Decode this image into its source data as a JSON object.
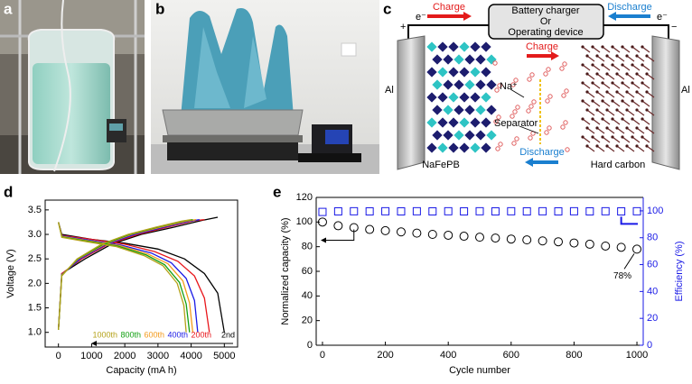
{
  "panel_labels": [
    "a",
    "b",
    "c",
    "d",
    "e"
  ],
  "diagram": {
    "charger": [
      "Battery charger",
      "Or",
      "Operating device"
    ],
    "charge_top": "Charge",
    "discharge_top": "Discharge",
    "electron_left": "e⁻",
    "electron_right": "e⁻",
    "plus": "+",
    "minus": "−",
    "al_left": "Al",
    "al_right": "Al",
    "ion": "Na⁺",
    "charge_mid": "Charge",
    "separator": "Separator",
    "discharge_mid": "Discharge",
    "cathode": "NaFePB",
    "anode": "Hard carbon"
  },
  "chart_data": [
    {
      "type": "line",
      "x_label": "Capacity (mA h)",
      "y_label": "Voltage (V)",
      "xlim": [
        -400,
        5400
      ],
      "xticks": [
        0,
        1000,
        2000,
        3000,
        4000,
        5000
      ],
      "ylim": [
        0.7,
        3.7
      ],
      "yticks": [
        {
          "value": 1,
          "label": "1.0"
        },
        1.5,
        {
          "value": 2,
          "label": "2.0"
        },
        2.5,
        {
          "value": 3,
          "label": "3.0"
        },
        3.5
      ],
      "series": [
        {
          "name": "2nd",
          "color": "#000000",
          "x": [
            0,
            100,
            800,
            1600,
            2500,
            3500,
            4300,
            4800,
            null,
            0,
            100,
            1000,
            2000,
            3000,
            3800,
            4400,
            4800,
            5000
          ],
          "values": [
            1.05,
            2.2,
            2.5,
            2.8,
            3.0,
            3.15,
            3.28,
            3.35,
            null,
            3.25,
            3.0,
            2.9,
            2.82,
            2.7,
            2.5,
            2.2,
            1.8,
            1.0
          ]
        },
        {
          "name": "200th",
          "color": "#e8161b",
          "x": [
            0,
            100,
            700,
            1500,
            2400,
            3300,
            4100,
            4400,
            null,
            0,
            100,
            1000,
            2000,
            2900,
            3600,
            4100,
            4400,
            4550
          ],
          "values": [
            1.05,
            2.2,
            2.5,
            2.8,
            3.0,
            3.15,
            3.28,
            3.3,
            null,
            3.25,
            2.98,
            2.9,
            2.8,
            2.65,
            2.45,
            2.15,
            1.7,
            1.0
          ]
        },
        {
          "name": "400th",
          "color": "#1a1ae6",
          "x": [
            0,
            100,
            650,
            1450,
            2300,
            3200,
            3950,
            4250,
            null,
            0,
            100,
            950,
            1900,
            2800,
            3400,
            3850,
            4100,
            4200
          ],
          "values": [
            1.05,
            2.18,
            2.5,
            2.8,
            3.0,
            3.15,
            3.27,
            3.3,
            null,
            3.25,
            2.97,
            2.88,
            2.78,
            2.62,
            2.42,
            2.1,
            1.65,
            1.0
          ]
        },
        {
          "name": "600th",
          "color": "#f39a1b",
          "x": [
            0,
            100,
            600,
            1400,
            2200,
            3100,
            3850,
            4150,
            null,
            0,
            100,
            900,
            1850,
            2700,
            3300,
            3750,
            3950,
            4050
          ],
          "values": [
            1.05,
            2.17,
            2.5,
            2.8,
            3.0,
            3.15,
            3.27,
            3.3,
            null,
            3.25,
            2.96,
            2.87,
            2.77,
            2.6,
            2.4,
            2.05,
            1.6,
            1.0
          ]
        },
        {
          "name": "800th",
          "color": "#12a012",
          "x": [
            0,
            100,
            580,
            1350,
            2150,
            3000,
            3750,
            4050,
            null,
            0,
            100,
            880,
            1800,
            2650,
            3200,
            3650,
            3850,
            3950
          ],
          "values": [
            1.05,
            2.16,
            2.5,
            2.8,
            3.0,
            3.15,
            3.27,
            3.3,
            null,
            3.25,
            2.95,
            2.86,
            2.76,
            2.58,
            2.38,
            2.02,
            1.58,
            1.0
          ]
        },
        {
          "name": "1000th",
          "color": "#b5a21a",
          "x": [
            0,
            100,
            560,
            1300,
            2100,
            2950,
            3700,
            4000,
            null,
            0,
            100,
            860,
            1750,
            2600,
            3150,
            3580,
            3780,
            3850
          ],
          "values": [
            1.05,
            2.15,
            2.5,
            2.8,
            3.0,
            3.15,
            3.27,
            3.3,
            null,
            3.25,
            2.94,
            2.85,
            2.75,
            2.56,
            2.36,
            2.0,
            1.55,
            1.0
          ]
        }
      ]
    },
    {
      "type": "scatter",
      "x_label": "Cycle number",
      "y_label": "Normalized capacity (%)",
      "y2_label": "Efficiency (%)",
      "xlim": [
        -20,
        1020
      ],
      "xticks": [
        0,
        200,
        400,
        600,
        800,
        1000
      ],
      "ylim": [
        0,
        120
      ],
      "yticks": [
        0,
        20,
        40,
        60,
        80,
        100,
        120
      ],
      "y2lim": [
        0,
        110
      ],
      "y2ticks": [
        0,
        20,
        40,
        60,
        80,
        100
      ],
      "annotation": "78%",
      "series": [
        {
          "name": "Normalized capacity",
          "color": "#000000",
          "marker": "circle",
          "x": [
            0,
            50,
            100,
            150,
            200,
            250,
            300,
            350,
            400,
            450,
            500,
            550,
            600,
            650,
            700,
            750,
            800,
            850,
            900,
            950,
            1000
          ],
          "values": [
            100,
            97,
            95.5,
            94,
            93,
            92,
            91,
            90,
            89.3,
            88.5,
            87.7,
            87,
            86.2,
            85.5,
            84.7,
            84,
            83,
            82,
            80.5,
            79.5,
            78
          ]
        },
        {
          "name": "Efficiency",
          "color": "#1a1ae6",
          "marker": "square",
          "axis": "y2",
          "x": [
            0,
            50,
            100,
            150,
            200,
            250,
            300,
            350,
            400,
            450,
            500,
            550,
            600,
            650,
            700,
            750,
            800,
            850,
            900,
            950,
            1000
          ],
          "values": [
            99.2,
            99.6,
            99.7,
            99.6,
            99.7,
            99.6,
            99.7,
            99.6,
            99.7,
            99.6,
            99.7,
            99.6,
            99.7,
            99.6,
            99.7,
            99.6,
            99.7,
            99.6,
            99.7,
            99.6,
            99.7
          ]
        }
      ]
    }
  ]
}
